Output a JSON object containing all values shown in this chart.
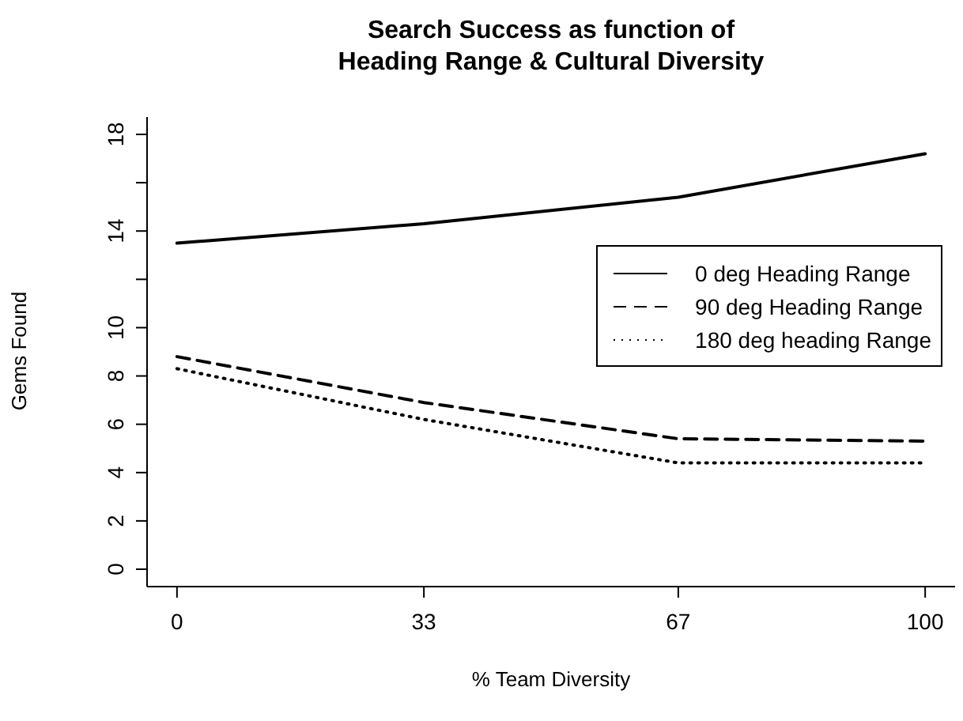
{
  "chart_data": {
    "type": "line",
    "title": "Search Success as function of\nHeading Range & Cultural Diversity",
    "xlabel": "% Team Diversity",
    "ylabel": "Gems Found",
    "x": [
      0,
      33,
      67,
      100
    ],
    "series": [
      {
        "name": "0 deg Heading Range",
        "color": "#000000",
        "line_style": "solid",
        "values": [
          13.5,
          14.3,
          15.4,
          17.2
        ]
      },
      {
        "name": "90 deg Heading Range",
        "color": "#000000",
        "line_style": "dashed",
        "values": [
          8.8,
          6.9,
          5.4,
          5.3
        ]
      },
      {
        "name": "180 deg heading Range",
        "color": "#000000",
        "line_style": "dotted",
        "values": [
          8.3,
          6.2,
          4.4,
          4.4
        ]
      }
    ],
    "xlim": [
      -4,
      104
    ],
    "xticks": [
      0,
      33,
      67,
      100
    ],
    "ylim": [
      -0.72,
      18.72
    ],
    "yticks": [
      0,
      2,
      4,
      6,
      8,
      10,
      {
        "value": 12,
        "label": null
      },
      14,
      {
        "value": 16,
        "label": null
      },
      18
    ],
    "grid": false,
    "legend": "top right",
    "marker": "none"
  }
}
